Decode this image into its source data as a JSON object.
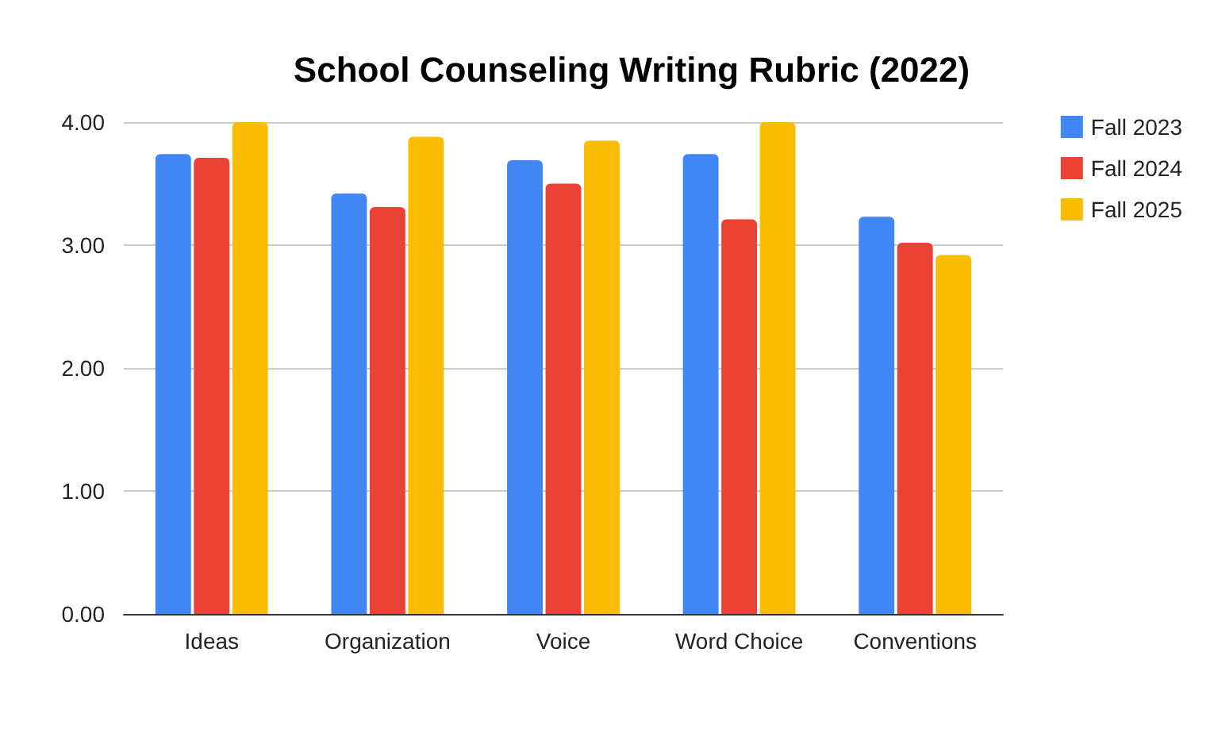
{
  "chart_data": {
    "type": "bar",
    "title": "School Counseling Writing Rubric (2022)",
    "categories": [
      "Ideas",
      "Organization",
      "Voice",
      "Word Choice",
      "Conventions"
    ],
    "series": [
      {
        "name": "Fall 2023",
        "color": "#4285f4",
        "values": [
          3.74,
          3.42,
          3.69,
          3.74,
          3.23
        ]
      },
      {
        "name": "Fall 2024",
        "color": "#ea4335",
        "values": [
          3.71,
          3.31,
          3.5,
          3.21,
          3.02
        ]
      },
      {
        "name": "Fall 2025",
        "color": "#fbbc04",
        "values": [
          4.0,
          3.88,
          3.85,
          4.0,
          2.92
        ]
      }
    ],
    "ylim": [
      0,
      4
    ],
    "yticks": [
      {
        "value": 0,
        "label": "0.00"
      },
      {
        "value": 1,
        "label": "1.00"
      },
      {
        "value": 2,
        "label": "2.00"
      },
      {
        "value": 3,
        "label": "3.00"
      },
      {
        "value": 4,
        "label": "4.00"
      }
    ],
    "grid": "y",
    "legend": "right"
  }
}
